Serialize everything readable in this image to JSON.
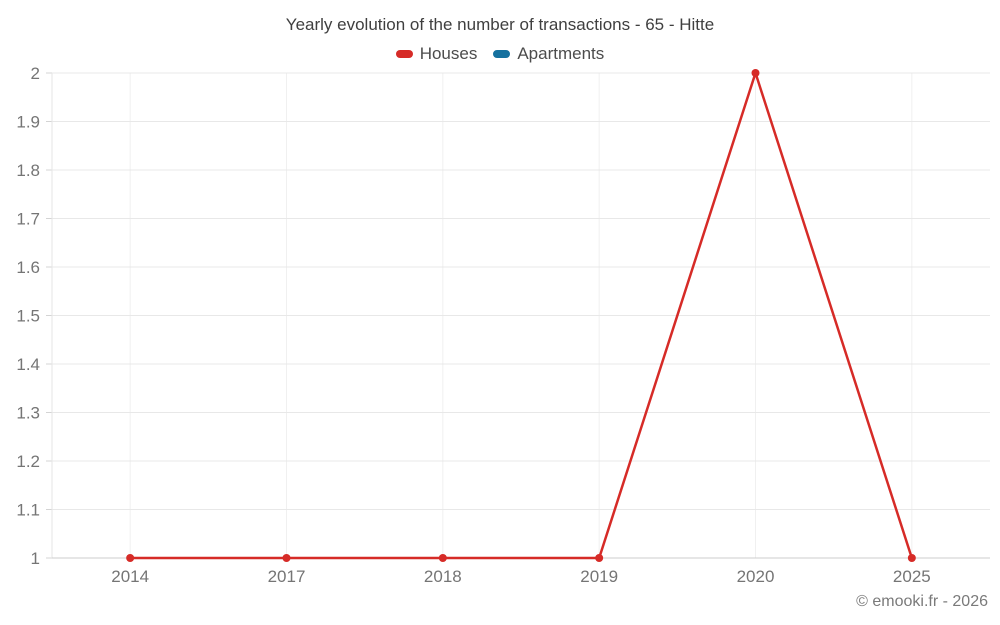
{
  "chart_data": {
    "type": "line",
    "title": "Yearly evolution of the number of transactions - 65 - Hitte",
    "categories": [
      "2014",
      "2017",
      "2018",
      "2019",
      "2020",
      "2025"
    ],
    "series": [
      {
        "name": "Houses",
        "color": "#d62b27",
        "values": [
          1,
          1,
          1,
          1,
          2,
          1
        ]
      },
      {
        "name": "Apartments",
        "color": "#15719f",
        "values": []
      }
    ],
    "xlabel": "",
    "ylabel": "",
    "ylim": [
      1,
      2
    ],
    "ytick_step": 0.1,
    "ytick_labels": [
      "1",
      "1.1",
      "1.2",
      "1.3",
      "1.4",
      "1.5",
      "1.6",
      "1.7",
      "1.8",
      "1.9",
      "2"
    ],
    "grid": true,
    "legend_position": "top",
    "marker_radius": 4,
    "line_width": 2.5,
    "colors": {
      "h_gridline": "#e8e8e8",
      "v_gridline": "#f0f0f0",
      "x_axis_line": "#cccccc",
      "y_axis_line": "#e6e6e6",
      "y_tick": "#d4d4d4"
    }
  },
  "footer": {
    "credit": "© emooki.fr - 2026"
  }
}
